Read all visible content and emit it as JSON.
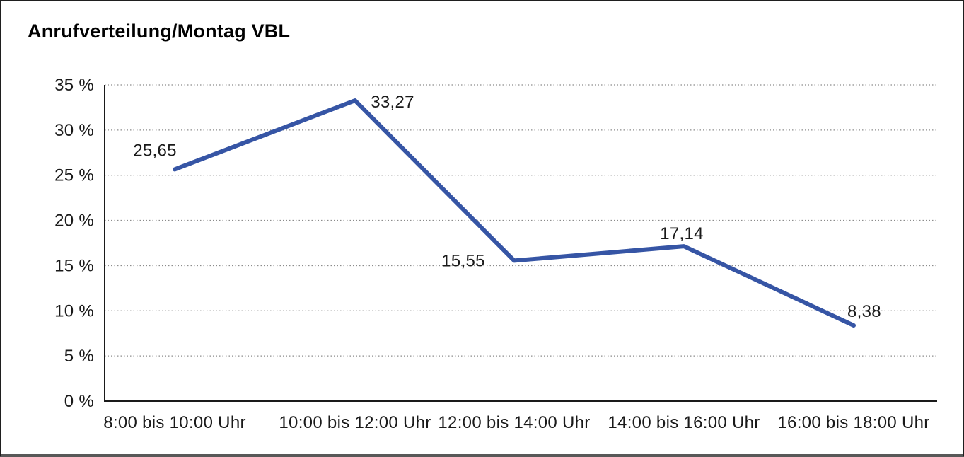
{
  "chart_data": {
    "type": "line",
    "title": "Anrufverteilung/Montag VBL",
    "categories": [
      "8:00 bis 10:00 Uhr",
      "10:00 bis 12:00 Uhr",
      "12:00 bis 14:00 Uhr",
      "14:00 bis 16:00 Uhr",
      "16:00 bis 18:00 Uhr"
    ],
    "values": [
      25.65,
      33.27,
      15.55,
      17.14,
      8.38
    ],
    "data_labels": [
      "25,65",
      "33,27",
      "15,55",
      "17,14",
      "8,38"
    ],
    "y_ticks": [
      "35 %",
      "30 %",
      "25 %",
      "20 %",
      "15 %",
      "10 %",
      "5 %",
      "0 %"
    ],
    "ylim": [
      0,
      35
    ],
    "y_tick_step": 5,
    "xlabel": "",
    "ylabel": "",
    "grid": "horizontal-dotted",
    "legend": "none",
    "line_color": "#3655A5",
    "text_color": "#1a1a1a"
  }
}
